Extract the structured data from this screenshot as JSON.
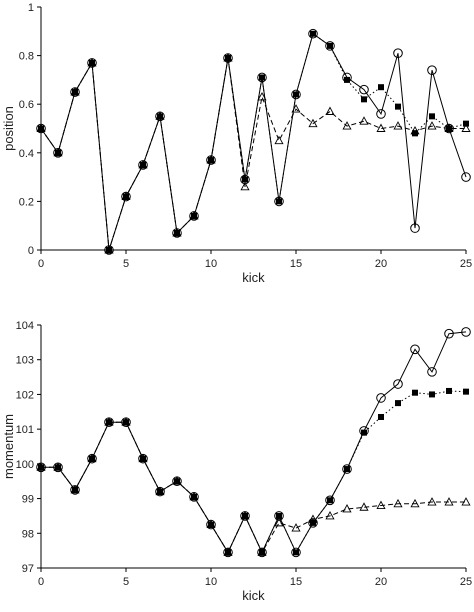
{
  "chart_data": [
    {
      "type": "line",
      "title": "",
      "xlabel": "kick",
      "ylabel": "position",
      "xlim": [
        0,
        25
      ],
      "ylim": [
        0,
        1
      ],
      "xticks": [
        0,
        5,
        10,
        15,
        20,
        25
      ],
      "yticks": [
        0,
        0.2,
        0.4,
        0.6,
        0.8,
        1
      ],
      "ytick_labels": [
        "0",
        "0.2",
        "0.4",
        "0.6",
        "0.8",
        "1"
      ],
      "grid": false,
      "legend": "none",
      "series": [
        {
          "marker": "open-circle",
          "line": "solid",
          "x": [
            0,
            1,
            2,
            3,
            4,
            5,
            6,
            7,
            8,
            9,
            10,
            11,
            12,
            13,
            14,
            15,
            16,
            17,
            18,
            19,
            20,
            21,
            22,
            23,
            24,
            25
          ],
          "values": [
            0.5,
            0.4,
            0.65,
            0.77,
            0.0,
            0.22,
            0.35,
            0.55,
            0.07,
            0.14,
            0.37,
            0.79,
            0.29,
            0.71,
            0.2,
            0.64,
            0.89,
            0.84,
            0.71,
            0.66,
            0.56,
            0.81,
            0.09,
            0.74,
            0.5,
            0.3
          ]
        },
        {
          "marker": "filled-square",
          "line": "dotted",
          "x": [
            0,
            1,
            2,
            3,
            4,
            5,
            6,
            7,
            8,
            9,
            10,
            11,
            12,
            13,
            14,
            15,
            16,
            17,
            18,
            19,
            20,
            21,
            22,
            23,
            24,
            25
          ],
          "values": [
            0.5,
            0.4,
            0.65,
            0.77,
            0.0,
            0.22,
            0.35,
            0.55,
            0.07,
            0.14,
            0.37,
            0.79,
            0.29,
            0.71,
            0.2,
            0.64,
            0.89,
            0.84,
            0.7,
            0.62,
            0.67,
            0.59,
            0.48,
            0.55,
            0.5,
            0.52
          ]
        },
        {
          "marker": "open-triangle",
          "line": "dashed",
          "x": [
            0,
            1,
            2,
            3,
            4,
            5,
            6,
            7,
            8,
            9,
            10,
            11,
            12,
            13,
            14,
            15,
            16,
            17,
            18,
            19,
            20,
            21,
            22,
            23,
            24,
            25
          ],
          "values": [
            0.5,
            0.4,
            0.65,
            0.77,
            0.0,
            0.22,
            0.35,
            0.55,
            0.07,
            0.14,
            0.37,
            0.79,
            0.26,
            0.63,
            0.45,
            0.58,
            0.52,
            0.57,
            0.51,
            0.53,
            0.5,
            0.51,
            0.49,
            0.51,
            0.5,
            0.5
          ]
        }
      ]
    },
    {
      "type": "line",
      "title": "",
      "xlabel": "kick",
      "ylabel": "momentum",
      "xlim": [
        0,
        25
      ],
      "ylim": [
        97,
        104
      ],
      "xticks": [
        0,
        5,
        10,
        15,
        20,
        25
      ],
      "yticks": [
        97,
        98,
        99,
        100,
        101,
        102,
        103,
        104
      ],
      "ytick_labels": [
        "97",
        "98",
        "99",
        "100",
        "101",
        "102",
        "103",
        "104"
      ],
      "grid": false,
      "legend": "none",
      "series": [
        {
          "marker": "open-circle",
          "line": "solid",
          "x": [
            0,
            1,
            2,
            3,
            4,
            5,
            6,
            7,
            8,
            9,
            10,
            11,
            12,
            13,
            14,
            15,
            16,
            17,
            18,
            19,
            20,
            21,
            22,
            23,
            24,
            25
          ],
          "values": [
            99.9,
            99.9,
            99.25,
            100.15,
            101.2,
            101.2,
            100.15,
            99.2,
            99.5,
            99.05,
            98.25,
            97.45,
            98.5,
            97.45,
            98.5,
            97.45,
            98.3,
            98.95,
            99.85,
            100.95,
            101.9,
            102.3,
            103.3,
            102.65,
            103.75,
            103.8
          ]
        },
        {
          "marker": "filled-square",
          "line": "dotted",
          "x": [
            0,
            1,
            2,
            3,
            4,
            5,
            6,
            7,
            8,
            9,
            10,
            11,
            12,
            13,
            14,
            15,
            16,
            17,
            18,
            19,
            20,
            21,
            22,
            23,
            24,
            25
          ],
          "values": [
            99.9,
            99.9,
            99.25,
            100.15,
            101.2,
            101.2,
            100.15,
            99.2,
            99.5,
            99.05,
            98.25,
            97.45,
            98.5,
            97.45,
            98.5,
            97.45,
            98.3,
            98.95,
            99.85,
            100.9,
            101.35,
            101.75,
            102.05,
            102.0,
            102.1,
            102.08
          ]
        },
        {
          "marker": "open-triangle",
          "line": "dashed",
          "x": [
            0,
            1,
            2,
            3,
            4,
            5,
            6,
            7,
            8,
            9,
            10,
            11,
            12,
            13,
            14,
            15,
            16,
            17,
            18,
            19,
            20,
            21,
            22,
            23,
            24,
            25
          ],
          "values": [
            99.9,
            99.9,
            99.25,
            100.15,
            101.2,
            101.2,
            100.15,
            99.2,
            99.5,
            99.05,
            98.25,
            97.45,
            98.5,
            97.45,
            98.3,
            98.15,
            98.4,
            98.5,
            98.7,
            98.75,
            98.8,
            98.85,
            98.85,
            98.9,
            98.9,
            98.9
          ]
        }
      ]
    }
  ]
}
